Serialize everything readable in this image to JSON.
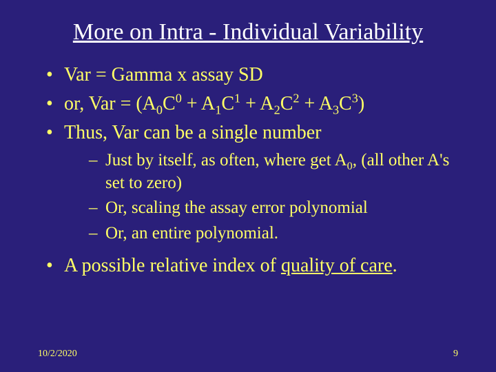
{
  "background_color": "#2a1f7a",
  "body_text_color": "#ffff66",
  "title_color": "#ffffff",
  "title_fontsize": 34,
  "body_fontsize": 28,
  "sub_fontsize": 25,
  "footer_fontsize": 14,
  "font_family": "Times New Roman",
  "title": "More on Intra - Individual Variability",
  "bullets": {
    "b1": "Var = Gamma  x  assay SD",
    "b2_pre": "or, Var = (A",
    "b2_part1": "C",
    "b2_part2": " + A",
    "b2_part3": "C",
    "b2_part4": " + A",
    "b2_part5": "C",
    "b2_part6": " + A",
    "b2_part7": "C",
    "b2_close": ")",
    "b3": "Thus, Var can be a single number",
    "sub1_pre": "Just by itself, as often, where get A",
    "sub1_post": ", (all other A's set to zero)",
    "sub2": "Or, scaling the assay error polynomial",
    "sub3": "Or, an entire polynomial.",
    "b4_pre": "A possible relative  index of ",
    "b4_underlined": "quality of care",
    "b4_post": "."
  },
  "subscripts": {
    "s0": "0",
    "s1": "1",
    "s2": "2",
    "s3": "3"
  },
  "superscripts": {
    "p0": "0",
    "p1": "1",
    "p2": "2",
    "p3": "3"
  },
  "footer": {
    "date": "10/2/2020",
    "page": "9"
  }
}
